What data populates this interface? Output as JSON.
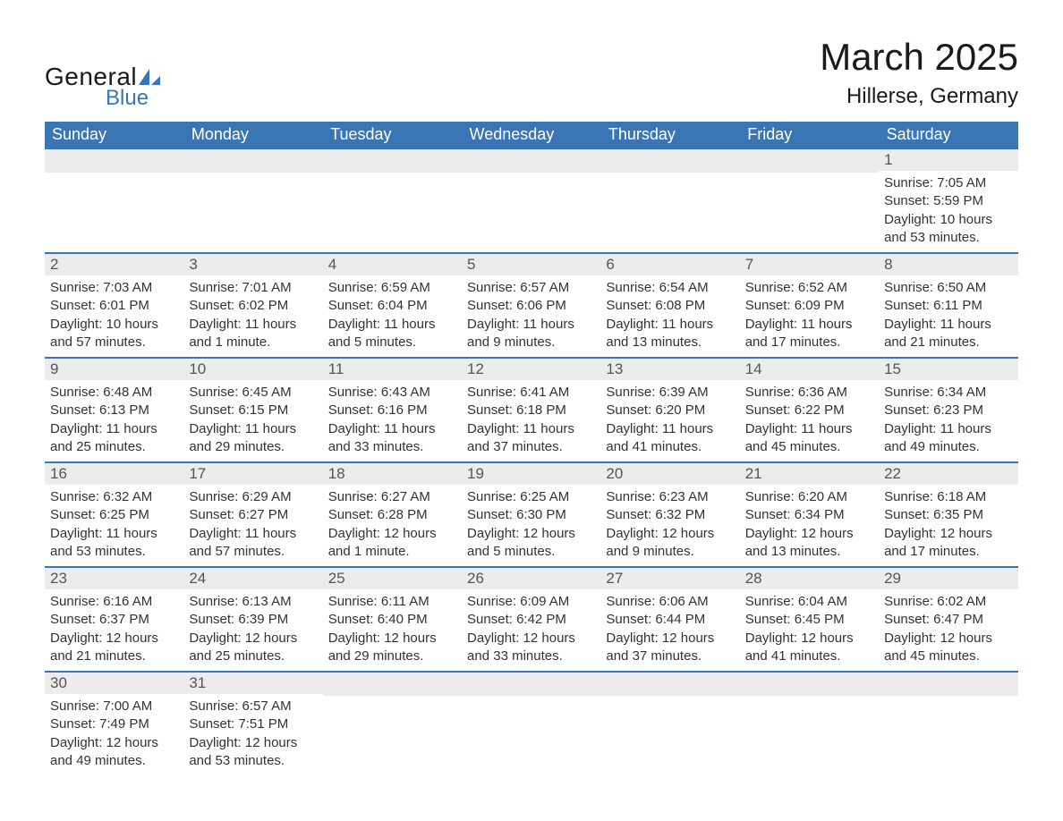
{
  "brand": {
    "word1": "General",
    "word2": "Blue",
    "accent_color": "#3a75b5"
  },
  "title": "March 2025",
  "location": "Hillerse, Germany",
  "colors": {
    "header_bg": "#3a75b5",
    "header_text": "#ffffff",
    "row_border": "#3a75b5",
    "daynum_bg": "#ececec",
    "daynum_text": "#555555",
    "body_text": "#333333",
    "page_bg": "#ffffff"
  },
  "typography": {
    "title_fontsize": 42,
    "location_fontsize": 24,
    "header_fontsize": 18,
    "daynum_fontsize": 17,
    "body_fontsize": 15
  },
  "weekdays": [
    "Sunday",
    "Monday",
    "Tuesday",
    "Wednesday",
    "Thursday",
    "Friday",
    "Saturday"
  ],
  "weeks": [
    [
      null,
      null,
      null,
      null,
      null,
      null,
      {
        "n": "1",
        "lines": [
          "Sunrise: 7:05 AM",
          "Sunset: 5:59 PM",
          "Daylight: 10 hours and 53 minutes."
        ]
      }
    ],
    [
      {
        "n": "2",
        "lines": [
          "Sunrise: 7:03 AM",
          "Sunset: 6:01 PM",
          "Daylight: 10 hours and 57 minutes."
        ]
      },
      {
        "n": "3",
        "lines": [
          "Sunrise: 7:01 AM",
          "Sunset: 6:02 PM",
          "Daylight: 11 hours and 1 minute."
        ]
      },
      {
        "n": "4",
        "lines": [
          "Sunrise: 6:59 AM",
          "Sunset: 6:04 PM",
          "Daylight: 11 hours and 5 minutes."
        ]
      },
      {
        "n": "5",
        "lines": [
          "Sunrise: 6:57 AM",
          "Sunset: 6:06 PM",
          "Daylight: 11 hours and 9 minutes."
        ]
      },
      {
        "n": "6",
        "lines": [
          "Sunrise: 6:54 AM",
          "Sunset: 6:08 PM",
          "Daylight: 11 hours and 13 minutes."
        ]
      },
      {
        "n": "7",
        "lines": [
          "Sunrise: 6:52 AM",
          "Sunset: 6:09 PM",
          "Daylight: 11 hours and 17 minutes."
        ]
      },
      {
        "n": "8",
        "lines": [
          "Sunrise: 6:50 AM",
          "Sunset: 6:11 PM",
          "Daylight: 11 hours and 21 minutes."
        ]
      }
    ],
    [
      {
        "n": "9",
        "lines": [
          "Sunrise: 6:48 AM",
          "Sunset: 6:13 PM",
          "Daylight: 11 hours and 25 minutes."
        ]
      },
      {
        "n": "10",
        "lines": [
          "Sunrise: 6:45 AM",
          "Sunset: 6:15 PM",
          "Daylight: 11 hours and 29 minutes."
        ]
      },
      {
        "n": "11",
        "lines": [
          "Sunrise: 6:43 AM",
          "Sunset: 6:16 PM",
          "Daylight: 11 hours and 33 minutes."
        ]
      },
      {
        "n": "12",
        "lines": [
          "Sunrise: 6:41 AM",
          "Sunset: 6:18 PM",
          "Daylight: 11 hours and 37 minutes."
        ]
      },
      {
        "n": "13",
        "lines": [
          "Sunrise: 6:39 AM",
          "Sunset: 6:20 PM",
          "Daylight: 11 hours and 41 minutes."
        ]
      },
      {
        "n": "14",
        "lines": [
          "Sunrise: 6:36 AM",
          "Sunset: 6:22 PM",
          "Daylight: 11 hours and 45 minutes."
        ]
      },
      {
        "n": "15",
        "lines": [
          "Sunrise: 6:34 AM",
          "Sunset: 6:23 PM",
          "Daylight: 11 hours and 49 minutes."
        ]
      }
    ],
    [
      {
        "n": "16",
        "lines": [
          "Sunrise: 6:32 AM",
          "Sunset: 6:25 PM",
          "Daylight: 11 hours and 53 minutes."
        ]
      },
      {
        "n": "17",
        "lines": [
          "Sunrise: 6:29 AM",
          "Sunset: 6:27 PM",
          "Daylight: 11 hours and 57 minutes."
        ]
      },
      {
        "n": "18",
        "lines": [
          "Sunrise: 6:27 AM",
          "Sunset: 6:28 PM",
          "Daylight: 12 hours and 1 minute."
        ]
      },
      {
        "n": "19",
        "lines": [
          "Sunrise: 6:25 AM",
          "Sunset: 6:30 PM",
          "Daylight: 12 hours and 5 minutes."
        ]
      },
      {
        "n": "20",
        "lines": [
          "Sunrise: 6:23 AM",
          "Sunset: 6:32 PM",
          "Daylight: 12 hours and 9 minutes."
        ]
      },
      {
        "n": "21",
        "lines": [
          "Sunrise: 6:20 AM",
          "Sunset: 6:34 PM",
          "Daylight: 12 hours and 13 minutes."
        ]
      },
      {
        "n": "22",
        "lines": [
          "Sunrise: 6:18 AM",
          "Sunset: 6:35 PM",
          "Daylight: 12 hours and 17 minutes."
        ]
      }
    ],
    [
      {
        "n": "23",
        "lines": [
          "Sunrise: 6:16 AM",
          "Sunset: 6:37 PM",
          "Daylight: 12 hours and 21 minutes."
        ]
      },
      {
        "n": "24",
        "lines": [
          "Sunrise: 6:13 AM",
          "Sunset: 6:39 PM",
          "Daylight: 12 hours and 25 minutes."
        ]
      },
      {
        "n": "25",
        "lines": [
          "Sunrise: 6:11 AM",
          "Sunset: 6:40 PM",
          "Daylight: 12 hours and 29 minutes."
        ]
      },
      {
        "n": "26",
        "lines": [
          "Sunrise: 6:09 AM",
          "Sunset: 6:42 PM",
          "Daylight: 12 hours and 33 minutes."
        ]
      },
      {
        "n": "27",
        "lines": [
          "Sunrise: 6:06 AM",
          "Sunset: 6:44 PM",
          "Daylight: 12 hours and 37 minutes."
        ]
      },
      {
        "n": "28",
        "lines": [
          "Sunrise: 6:04 AM",
          "Sunset: 6:45 PM",
          "Daylight: 12 hours and 41 minutes."
        ]
      },
      {
        "n": "29",
        "lines": [
          "Sunrise: 6:02 AM",
          "Sunset: 6:47 PM",
          "Daylight: 12 hours and 45 minutes."
        ]
      }
    ],
    [
      {
        "n": "30",
        "lines": [
          "Sunrise: 7:00 AM",
          "Sunset: 7:49 PM",
          "Daylight: 12 hours and 49 minutes."
        ]
      },
      {
        "n": "31",
        "lines": [
          "Sunrise: 6:57 AM",
          "Sunset: 7:51 PM",
          "Daylight: 12 hours and 53 minutes."
        ]
      },
      null,
      null,
      null,
      null,
      null
    ]
  ]
}
